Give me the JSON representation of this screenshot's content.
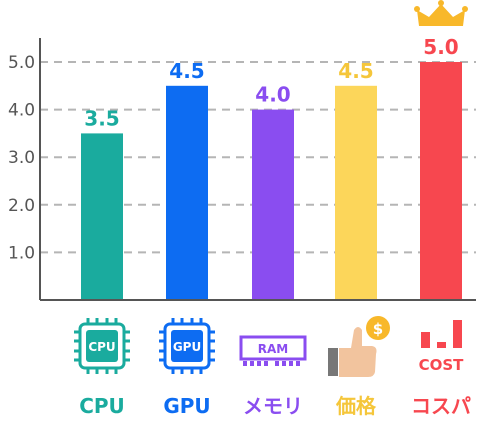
{
  "chart_data": {
    "type": "bar",
    "categories": [
      "CPU",
      "GPU",
      "メモリ",
      "価格",
      "コスパ"
    ],
    "values": [
      3.5,
      4.5,
      4.0,
      4.5,
      5.0
    ],
    "value_labels": [
      "3.5",
      "4.5",
      "4.0",
      "4.5",
      "5.0"
    ],
    "y_ticks": [
      "1.0",
      "2.0",
      "3.0",
      "4.0",
      "5.0"
    ],
    "ylim": [
      0,
      5.5
    ],
    "grid": true,
    "colors": [
      "#1aab9e",
      "#0d6cf2",
      "#8a4df0",
      "#fcd65a",
      "#f7474f"
    ],
    "label_colors": [
      "#1aab9e",
      "#0d6cf2",
      "#8a4df0",
      "#f5c63a",
      "#f7474f"
    ]
  },
  "icons": {
    "cpu": {
      "name": "cpu-chip-icon",
      "text": "CPU",
      "color": "#1aab9e"
    },
    "gpu": {
      "name": "gpu-chip-icon",
      "text": "GPU",
      "color": "#0d6cf2"
    },
    "ram": {
      "name": "ram-module-icon",
      "text": "RAM",
      "color": "#8a4df0"
    },
    "price": {
      "name": "thumbs-up-coin-icon",
      "coin": "$"
    },
    "cost": {
      "name": "cost-bars-icon",
      "text": "COST",
      "color": "#f7474f"
    },
    "crown": {
      "name": "crown-icon",
      "color": "#f8b82a"
    }
  }
}
